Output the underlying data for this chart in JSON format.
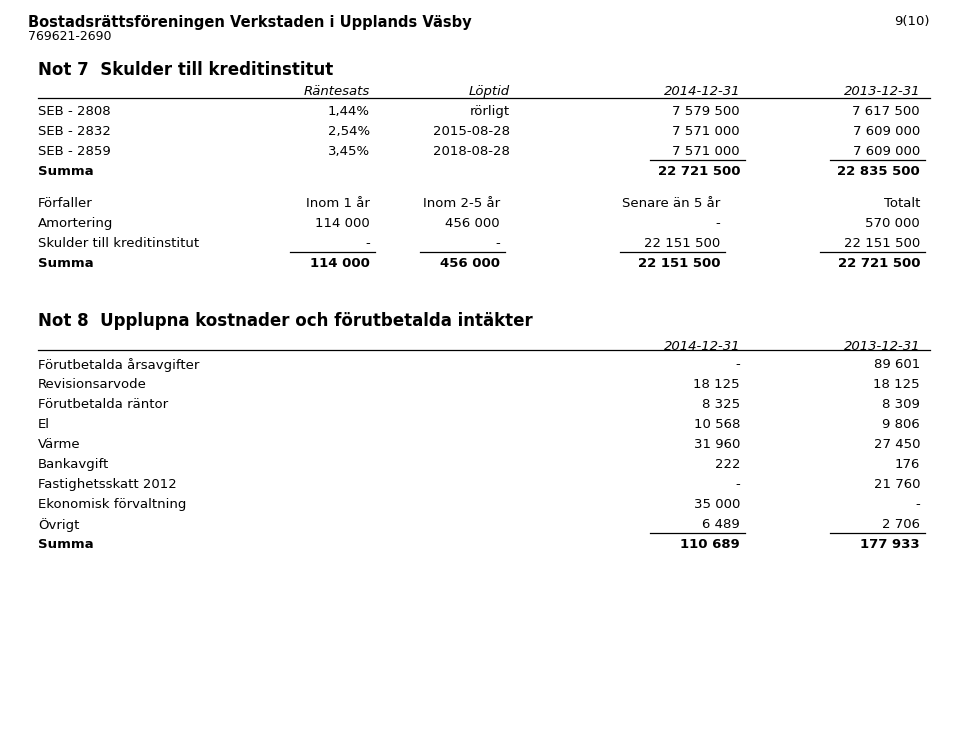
{
  "title_org": "Bostadsrättsföreningen Verkstaden i Upplands Väsby",
  "org_number": "769621-2690",
  "page": "9(10)",
  "bg_color": "#ffffff",
  "not7_title": "Not 7  Skulder till kreditinstitut",
  "not7_headers": [
    "Räntesats",
    "Löptid",
    "2014-12-31",
    "2013-12-31"
  ],
  "not7_rows": [
    [
      "SEB - 2808",
      "1,44%",
      "rörligt",
      "7 579 500",
      "7 617 500"
    ],
    [
      "SEB - 2832",
      "2,54%",
      "2015-08-28",
      "7 571 000",
      "7 609 000"
    ],
    [
      "SEB - 2859",
      "3,45%",
      "2018-08-28",
      "7 571 000",
      "7 609 000"
    ]
  ],
  "not7_summa": [
    "Summa",
    "",
    "",
    "22 721 500",
    "22 835 500"
  ],
  "not7_table2_headers": [
    "Förfaller",
    "Inom 1 år",
    "Inom 2-5 år",
    "Senare än 5 år",
    "Totalt"
  ],
  "not7_table2_rows": [
    [
      "Amortering",
      "114 000",
      "456 000",
      "-",
      "570 000"
    ],
    [
      "Skulder till kreditinstitut",
      "-",
      "-",
      "22 151 500",
      "22 151 500"
    ]
  ],
  "not7_table2_summa": [
    "Summa",
    "114 000",
    "456 000",
    "22 151 500",
    "22 721 500"
  ],
  "not8_title": "Not 8  Upplupna kostnader och förutbetalda intäkter",
  "not8_headers": [
    "",
    "2014-12-31",
    "2013-12-31"
  ],
  "not8_rows": [
    [
      "Förutbetalda årsavgifter",
      "-",
      "89 601"
    ],
    [
      "Revisionsarvode",
      "18 125",
      "18 125"
    ],
    [
      "Förutbetalda räntor",
      "8 325",
      "8 309"
    ],
    [
      "El",
      "10 568",
      "9 806"
    ],
    [
      "Värme",
      "31 960",
      "27 450"
    ],
    [
      "Bankavgift",
      "222",
      "176"
    ],
    [
      "Fastighetsskatt 2012",
      "-",
      "21 760"
    ],
    [
      "Ekonomisk förvaltning",
      "35 000",
      "-"
    ],
    [
      "Övrigt",
      "6 489",
      "2 706"
    ]
  ],
  "not8_summa": [
    "Summa",
    "110 689",
    "177 933"
  ]
}
